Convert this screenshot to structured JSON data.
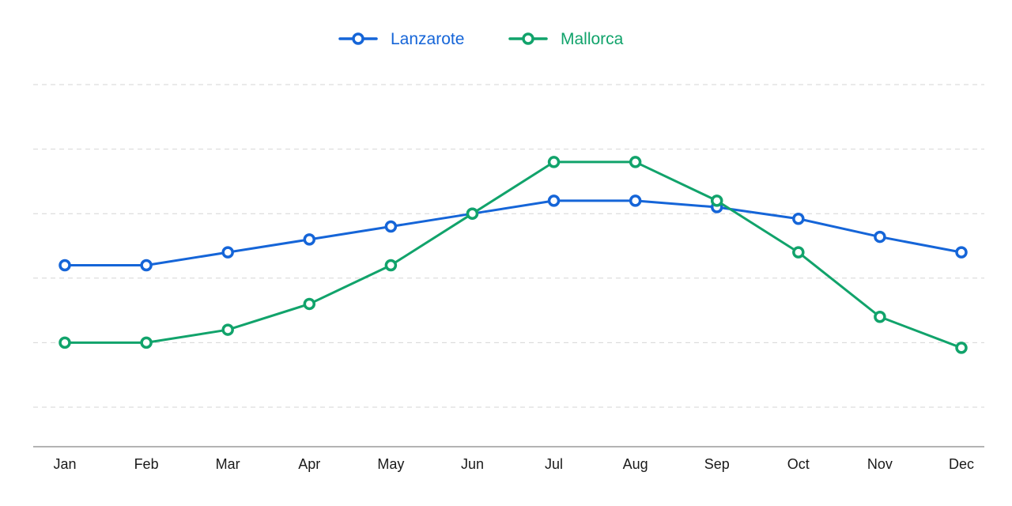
{
  "chart_data": {
    "type": "line",
    "title": "",
    "xlabel": "",
    "ylabel": "",
    "categories": [
      "Jan",
      "Feb",
      "Mar",
      "Apr",
      "May",
      "Jun",
      "Jul",
      "Aug",
      "Sep",
      "Oct",
      "Nov",
      "Dec"
    ],
    "series": [
      {
        "name": "Lanzarote",
        "color": "#1565d8",
        "values": [
          21,
          21,
          22,
          23,
          24,
          25,
          26,
          26,
          25.5,
          24.6,
          23.2,
          22
        ]
      },
      {
        "name": "Mallorca",
        "color": "#11a36b",
        "values": [
          15,
          15,
          16,
          18,
          21,
          25,
          29,
          29,
          26,
          22,
          17,
          14.6
        ]
      }
    ],
    "ylim": [
      10,
      35
    ],
    "y_gridlines": [
      10,
      15,
      20,
      25,
      30,
      35
    ],
    "grid": true,
    "y_tick_labels_visible": false,
    "legend_position": "top-center",
    "marker": "hollow-circle"
  }
}
